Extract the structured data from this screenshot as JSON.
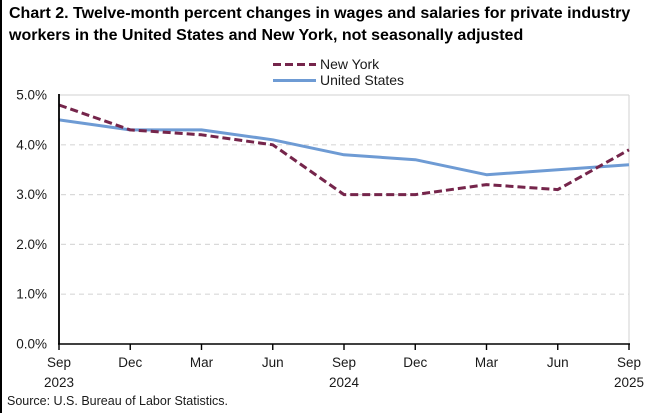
{
  "title": "Chart 2. Twelve-month percent changes in wages and salaries for private industry workers in the United States and New York, not seasonally adjusted",
  "source": "Source: U.S. Bureau of Labor Statistics.",
  "colors": {
    "new_york": "#75254B",
    "united_states": "#6E9BD4",
    "gridline": "#D9D9D9",
    "axis": "#000000"
  },
  "chart_data": {
    "type": "line",
    "title": "Chart 2. Twelve-month percent changes in wages and salaries for private industry workers in the United States and New York, not seasonally adjusted",
    "x_tick_labels": [
      "Sep",
      "Dec",
      "Mar",
      "Jun",
      "Sep",
      "Dec",
      "Mar",
      "Jun",
      "Sep"
    ],
    "x_year_labels": [
      {
        "index": 0,
        "year": "2023"
      },
      {
        "index": 4,
        "year": "2024"
      },
      {
        "index": 8,
        "year": "2025"
      }
    ],
    "y_tick_labels": [
      "0.0%",
      "1.0%",
      "2.0%",
      "3.0%",
      "4.0%",
      "5.0%"
    ],
    "ylim": [
      0,
      5
    ],
    "grid": "horizontal-dashed",
    "legend_position": "top-center",
    "series": [
      {
        "name": "New York",
        "color": "#75254B",
        "style": "dashed",
        "values": [
          4.8,
          4.3,
          4.2,
          4.0,
          3.0,
          3.0,
          3.2,
          3.1,
          3.9
        ]
      },
      {
        "name": "United States",
        "color": "#6E9BD4",
        "style": "solid",
        "values": [
          4.5,
          4.3,
          4.3,
          4.1,
          3.8,
          3.7,
          3.4,
          3.5,
          3.6
        ]
      }
    ]
  }
}
